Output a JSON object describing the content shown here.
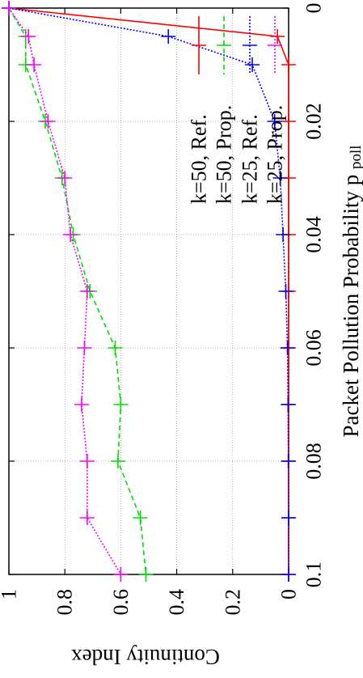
{
  "chart_data": {
    "type": "line",
    "xlabel": "Packet Pollution Probability p",
    "xlabel_subscript": "poll",
    "ylabel": "Continuity Index",
    "xlim": [
      0,
      0.1
    ],
    "ylim": [
      0,
      1
    ],
    "grid": true,
    "legend_placement": "top-right",
    "x_ticks": [
      "0",
      "0.02",
      "0.04",
      "0.06",
      "0.08",
      "0.1"
    ],
    "x_tick_values": [
      0,
      0.02,
      0.04,
      0.06,
      0.08,
      0.1
    ],
    "y_ticks": [
      "0",
      "0.2",
      "0.4",
      "0.6",
      "0.8",
      "1"
    ],
    "y_tick_values": [
      0,
      0.2,
      0.4,
      0.6,
      0.8,
      1
    ],
    "series": [
      {
        "name": "k=50, Ref.",
        "color": "#ff0000",
        "dash": "solid",
        "x": [
          0,
          0.005,
          0.01,
          0.02,
          0.03,
          0.04,
          0.05,
          0.06,
          0.07,
          0.08,
          0.09,
          0.1
        ],
        "y": [
          1,
          0.04,
          0,
          0,
          0,
          0,
          0,
          0,
          0,
          0,
          0,
          0
        ]
      },
      {
        "name": "k=50, Prop.",
        "color": "#00dd00",
        "dash": "dashed",
        "x": [
          0,
          0.005,
          0.01,
          0.02,
          0.03,
          0.04,
          0.05,
          0.06,
          0.07,
          0.08,
          0.09,
          0.1
        ],
        "y": [
          1,
          0.94,
          0.94,
          0.87,
          0.81,
          0.77,
          0.71,
          0.62,
          0.6,
          0.61,
          0.53,
          0.51
        ]
      },
      {
        "name": "k=25, Ref.",
        "color": "#0000ff",
        "dash": "dotted",
        "x": [
          0,
          0.005,
          0.01,
          0.02,
          0.03,
          0.04,
          0.05,
          0.06,
          0.07,
          0.08,
          0.09,
          0.1
        ],
        "y": [
          1,
          0.43,
          0.13,
          0.05,
          0.03,
          0.02,
          0.01,
          0.004,
          0.002,
          0.001,
          0,
          0
        ]
      },
      {
        "name": "k=25, Prop.",
        "color": "#ff00ff",
        "dash": "dotted",
        "x": [
          0,
          0.005,
          0.01,
          0.02,
          0.03,
          0.04,
          0.05,
          0.06,
          0.07,
          0.08,
          0.09,
          0.1
        ],
        "y": [
          1,
          0.93,
          0.91,
          0.86,
          0.8,
          0.78,
          0.72,
          0.73,
          0.74,
          0.72,
          0.72,
          0.6
        ]
      }
    ]
  }
}
